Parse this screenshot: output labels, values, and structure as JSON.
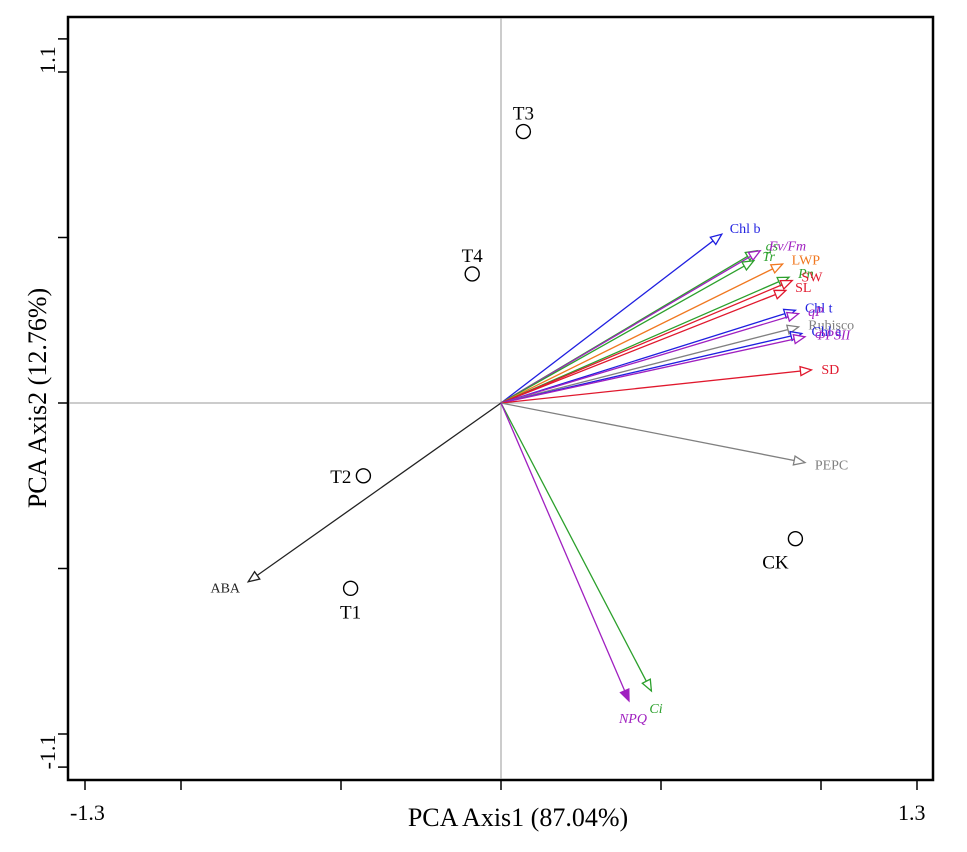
{
  "chart_data": {
    "type": "biplot",
    "xlabel": "PCA  Axis1  (87.04%)",
    "ylabel": "PCA  Axis2  (12.76%)",
    "xlim": [
      -1.3,
      1.3
    ],
    "ylim": [
      -1.1,
      1.1
    ],
    "x_tick_labels": [
      "-1.3",
      "1.3"
    ],
    "y_tick_labels": [
      "1.1",
      "-1.1"
    ],
    "x_ticks": [
      -1.3,
      -1.0,
      -0.5,
      0.0,
      0.5,
      1.0,
      1.3
    ],
    "y_ticks": [
      -1.1,
      -1.0,
      -0.5,
      0.0,
      0.5,
      1.0,
      1.1
    ],
    "samples": [
      {
        "name": "T3",
        "x": 0.07,
        "y": 0.82
      },
      {
        "name": "T4",
        "x": -0.09,
        "y": 0.39
      },
      {
        "name": "T2",
        "x": -0.43,
        "y": -0.22
      },
      {
        "name": "T1",
        "x": -0.47,
        "y": -0.56
      },
      {
        "name": "CK",
        "x": 0.92,
        "y": -0.41
      }
    ],
    "variables": [
      {
        "name": "Chl b",
        "x": 0.69,
        "y": 0.51,
        "color": "#1f1fe0",
        "italic": false
      },
      {
        "name": "gs",
        "x": 0.8,
        "y": 0.46,
        "color": "#2ca02c",
        "italic": true
      },
      {
        "name": "Fv/Fm",
        "x": 0.81,
        "y": 0.46,
        "color": "#a020c0",
        "italic": true
      },
      {
        "name": "Tr",
        "x": 0.79,
        "y": 0.43,
        "color": "#2ca02c",
        "italic": true
      },
      {
        "name": "LWP",
        "x": 0.88,
        "y": 0.42,
        "color": "#f07820",
        "italic": false
      },
      {
        "name": "Pn",
        "x": 0.9,
        "y": 0.38,
        "color": "#2ca02c",
        "italic": true
      },
      {
        "name": "SW",
        "x": 0.91,
        "y": 0.37,
        "color": "#e0182d",
        "italic": false
      },
      {
        "name": "SL",
        "x": 0.89,
        "y": 0.34,
        "color": "#e0182d",
        "italic": false
      },
      {
        "name": "Chl t",
        "x": 0.92,
        "y": 0.28,
        "color": "#1f1fe0",
        "italic": false
      },
      {
        "name": "qP",
        "x": 0.93,
        "y": 0.27,
        "color": "#a020c0",
        "italic": true
      },
      {
        "name": "Rubisco",
        "x": 0.93,
        "y": 0.23,
        "color": "#808080",
        "italic": false
      },
      {
        "name": "Chl a",
        "x": 0.94,
        "y": 0.21,
        "color": "#1f1fe0",
        "italic": false
      },
      {
        "name": "ΦPSII",
        "x": 0.95,
        "y": 0.2,
        "color": "#a020c0",
        "italic": true
      },
      {
        "name": "SD",
        "x": 0.97,
        "y": 0.1,
        "color": "#e0182d",
        "italic": false
      },
      {
        "name": "PEPC",
        "x": 0.95,
        "y": -0.18,
        "color": "#808080",
        "italic": false
      },
      {
        "name": "ABA",
        "x": -0.79,
        "y": -0.54,
        "color": "#222222",
        "italic": false
      },
      {
        "name": "Ci",
        "x": 0.47,
        "y": -0.87,
        "color": "#2ca02c",
        "italic": true
      },
      {
        "name": "NPQ",
        "x": 0.4,
        "y": -0.9,
        "color": "#a020c0",
        "italic": true
      }
    ]
  }
}
